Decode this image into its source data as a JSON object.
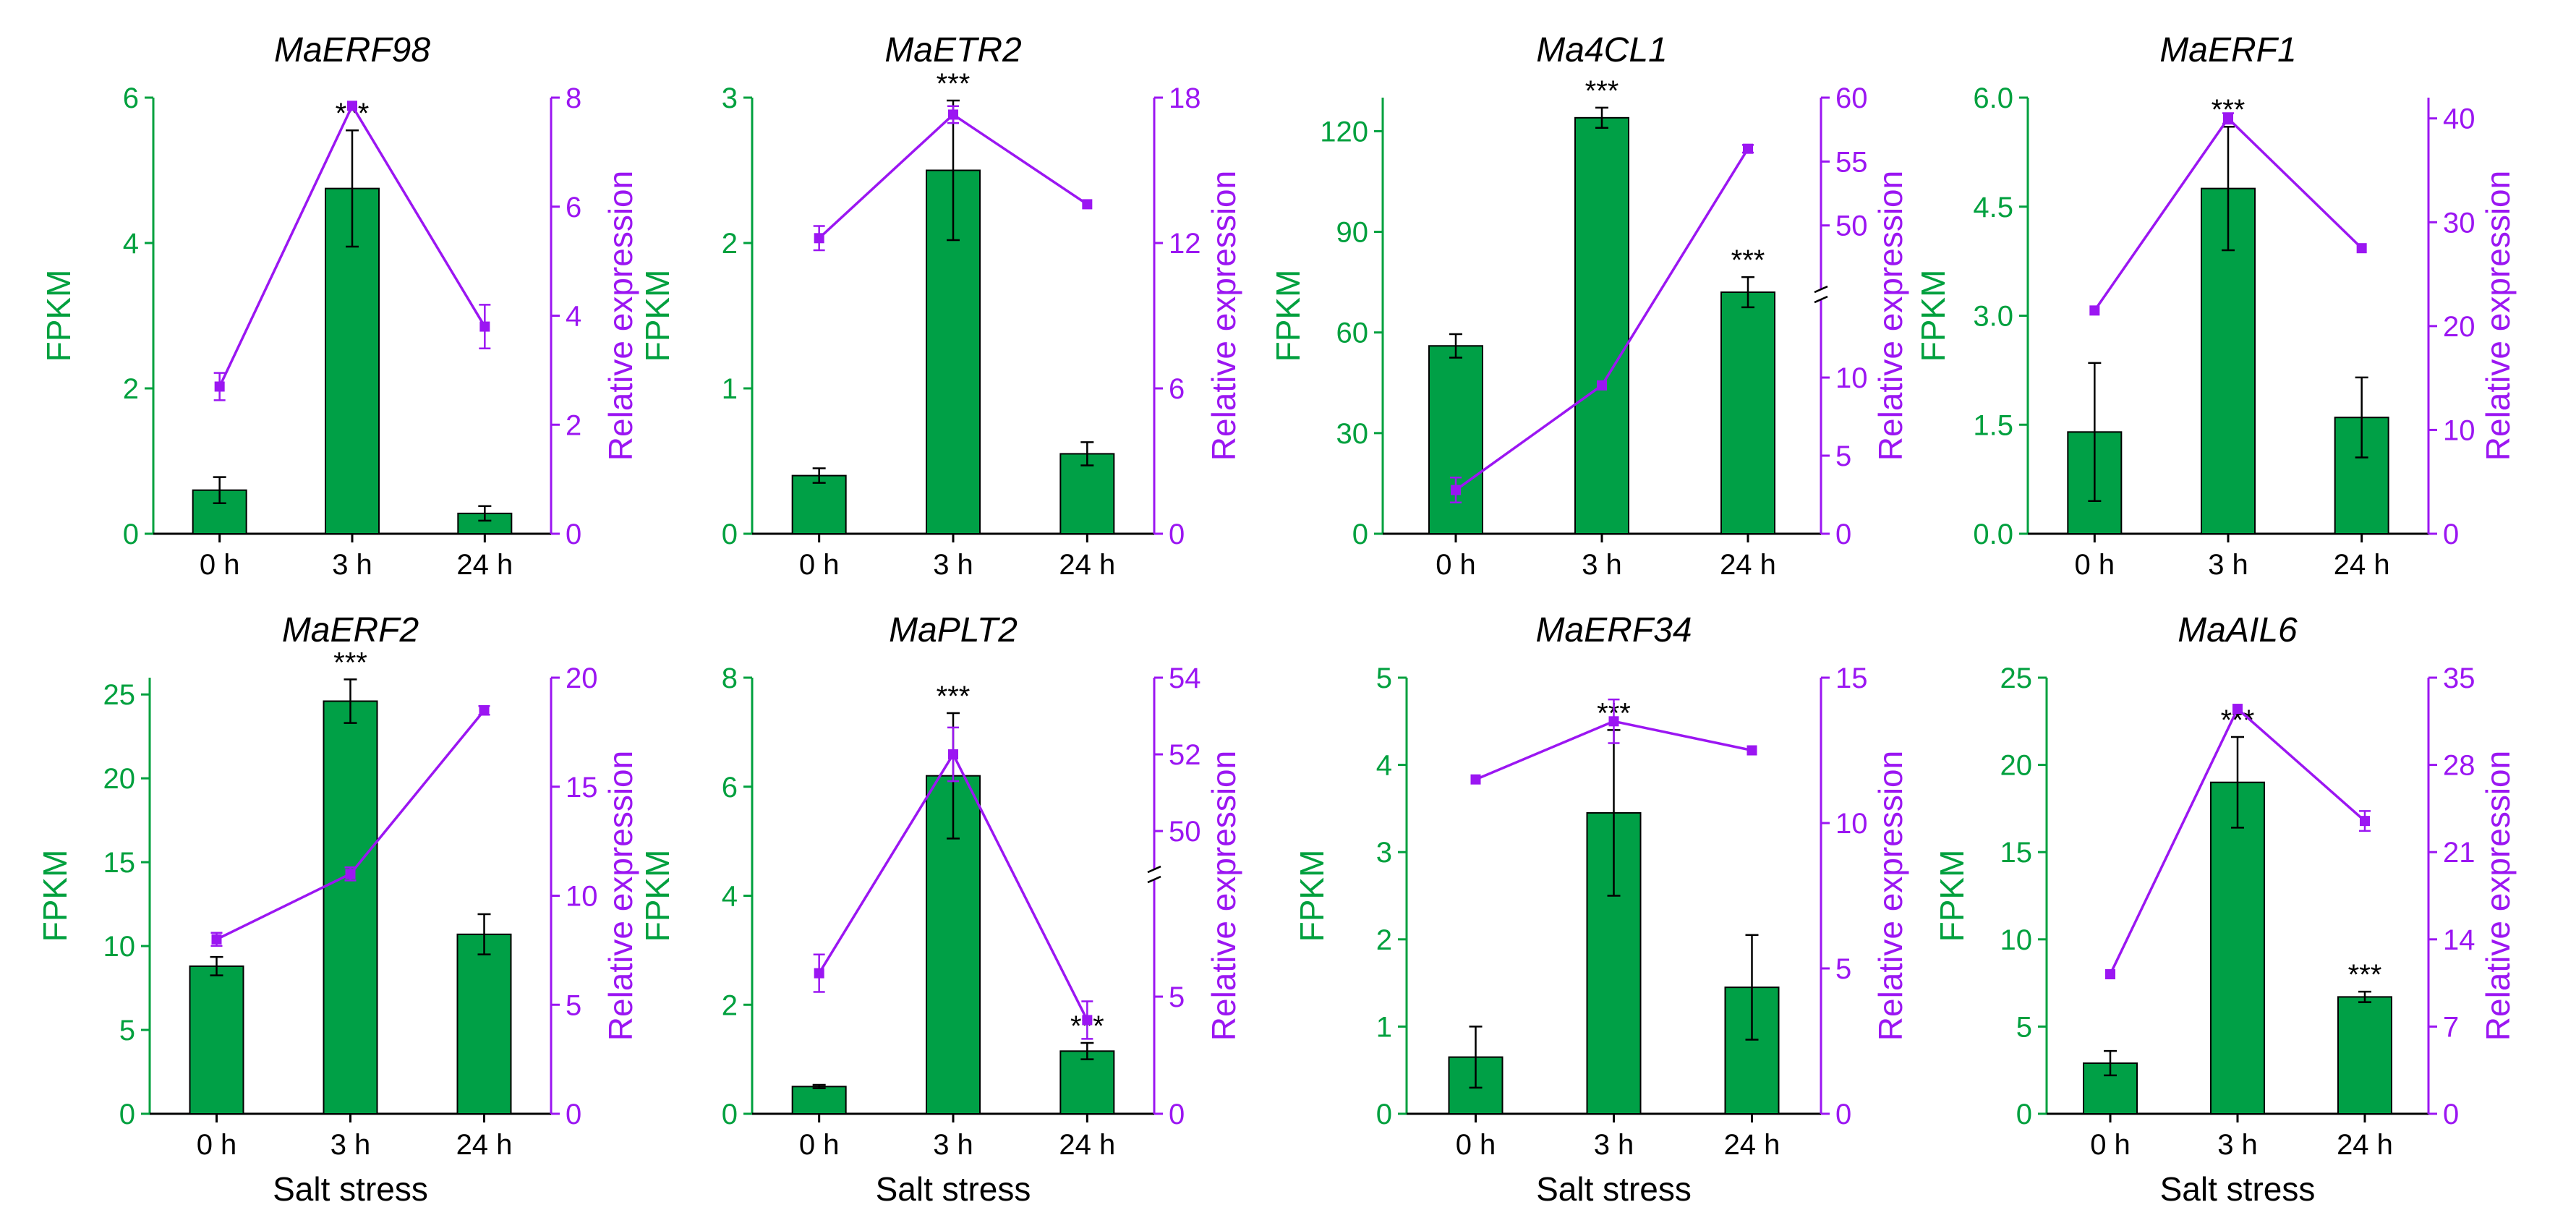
{
  "colors": {
    "fpkm": "#00A03E",
    "fpkm_bar": "#00A046",
    "relative": "#9B16F2",
    "text": "#000000"
  },
  "shared": {
    "x_label": "Salt stress",
    "left_axis_label": "FPKM",
    "right_axis_label": "Relative expression",
    "significance": "***"
  },
  "chart_data": [
    {
      "type": "bar+line",
      "title": "MaERF98",
      "categories": [
        "0 h",
        "3 h",
        "24 h"
      ],
      "fpkm": {
        "values": [
          0.6,
          4.75,
          0.28
        ],
        "errors": [
          0.18,
          0.8,
          0.1
        ],
        "ylim": [
          0,
          6
        ],
        "ticks": [
          0,
          2,
          4,
          6
        ],
        "tick_labels": [
          "0",
          "2",
          "4",
          "6"
        ],
        "sig": [
          false,
          true,
          false
        ]
      },
      "relative": {
        "values": [
          2.7,
          7.85,
          3.8
        ],
        "errors": [
          0.25,
          0,
          0.4
        ],
        "ylim": [
          0,
          8
        ],
        "ticks": [
          0,
          2,
          4,
          6,
          8
        ],
        "tick_labels": [
          "0",
          "2",
          "4",
          "6",
          "8"
        ]
      },
      "xlabel": "",
      "ylabel_left": "FPKM",
      "ylabel_right": "Relative expression"
    },
    {
      "type": "bar+line",
      "title": "MaETR2",
      "categories": [
        "0 h",
        "3 h",
        "24 h"
      ],
      "fpkm": {
        "values": [
          0.4,
          2.5,
          0.55
        ],
        "errors": [
          0.05,
          0.48,
          0.08
        ],
        "ylim": [
          0,
          3
        ],
        "ticks": [
          0,
          1,
          2,
          3
        ],
        "tick_labels": [
          "0",
          "1",
          "2",
          "3"
        ],
        "sig": [
          false,
          true,
          false
        ]
      },
      "relative": {
        "values": [
          12.2,
          17.3,
          13.6
        ],
        "errors": [
          0.5,
          0.35,
          0
        ],
        "ylim": [
          0,
          18
        ],
        "ticks": [
          0,
          6,
          12,
          18
        ],
        "tick_labels": [
          "0",
          "6",
          "12",
          "18"
        ]
      },
      "xlabel": "",
      "ylabel_left": "FPKM",
      "ylabel_right": "Relative expression"
    },
    {
      "type": "bar+line",
      "title": "Ma4CL1",
      "categories": [
        "0 h",
        "3 h",
        "24 h"
      ],
      "fpkm": {
        "values": [
          56,
          124,
          72
        ],
        "errors": [
          3.5,
          3,
          4.5
        ],
        "ylim": [
          0,
          130
        ],
        "ticks": [
          0,
          30,
          60,
          90,
          120
        ],
        "tick_labels": [
          "0",
          "30",
          "60",
          "90",
          "120"
        ],
        "sig": [
          false,
          true,
          true
        ]
      },
      "relative": {
        "values": [
          2.8,
          9.5,
          56.0
        ],
        "errors": [
          0.8,
          0,
          0.3
        ],
        "ylim": [
          0,
          60
        ],
        "ticks": [
          0,
          5,
          10,
          50,
          55,
          60
        ],
        "tick_labels": [
          "0",
          "5",
          "10",
          "50",
          "55",
          "60"
        ],
        "axis_break": [
          15,
          45
        ]
      },
      "xlabel": "",
      "ylabel_left": "FPKM",
      "ylabel_right": "Relative expression"
    },
    {
      "type": "bar+line",
      "title": "MaERF1",
      "categories": [
        "0 h",
        "3 h",
        "24 h"
      ],
      "fpkm": {
        "values": [
          1.4,
          4.75,
          1.6
        ],
        "errors": [
          0.95,
          0.85,
          0.55
        ],
        "ylim": [
          0,
          6
        ],
        "ticks": [
          0,
          1.5,
          3,
          4.5,
          6
        ],
        "tick_labels": [
          "0.0",
          "1.5",
          "3.0",
          "4.5",
          "6.0"
        ],
        "sig": [
          false,
          true,
          false
        ]
      },
      "relative": {
        "values": [
          21.5,
          40.0,
          27.5
        ],
        "errors": [
          0,
          0.5,
          0
        ],
        "ylim": [
          0,
          42
        ],
        "ticks": [
          0,
          10,
          20,
          30,
          40
        ],
        "tick_labels": [
          "0",
          "10",
          "20",
          "30",
          "40"
        ]
      },
      "xlabel": "",
      "ylabel_left": "FPKM",
      "ylabel_right": "Relative expression"
    },
    {
      "type": "bar+line",
      "title": "MaERF2",
      "categories": [
        "0 h",
        "3 h",
        "24 h"
      ],
      "fpkm": {
        "values": [
          8.8,
          24.6,
          10.7
        ],
        "errors": [
          0.55,
          1.3,
          1.2
        ],
        "ylim": [
          0,
          26
        ],
        "ticks": [
          0,
          5,
          10,
          15,
          20,
          25
        ],
        "tick_labels": [
          "0",
          "5",
          "10",
          "15",
          "20",
          "25"
        ],
        "sig": [
          false,
          true,
          false
        ]
      },
      "relative": {
        "values": [
          8.0,
          11.0,
          18.5
        ],
        "errors": [
          0.3,
          0.3,
          0.2
        ],
        "ylim": [
          0,
          20
        ],
        "ticks": [
          0,
          5,
          10,
          15,
          20
        ],
        "tick_labels": [
          "0",
          "5",
          "10",
          "15",
          "20"
        ]
      },
      "xlabel": "Salt stress",
      "ylabel_left": "FPKM",
      "ylabel_right": "Relative expression"
    },
    {
      "type": "bar+line",
      "title": "MaPLT2",
      "categories": [
        "0 h",
        "3 h",
        "24 h"
      ],
      "fpkm": {
        "values": [
          0.5,
          6.2,
          1.15
        ],
        "errors": [
          0.03,
          1.15,
          0.15
        ],
        "ylim": [
          0,
          8
        ],
        "ticks": [
          0,
          2,
          4,
          6,
          8
        ],
        "tick_labels": [
          "0",
          "2",
          "4",
          "6",
          "8"
        ],
        "sig": [
          false,
          true,
          true
        ]
      },
      "relative": {
        "values": [
          6.0,
          52.0,
          4.0
        ],
        "errors": [
          0.8,
          0.7,
          0.8
        ],
        "ylim": [
          0,
          54
        ],
        "ticks": [
          0,
          5,
          50,
          52,
          54
        ],
        "tick_labels": [
          "0",
          "5",
          "50",
          "52",
          "54"
        ],
        "axis_break": [
          10,
          49
        ]
      },
      "xlabel": "Salt stress",
      "ylabel_left": "FPKM",
      "ylabel_right": "Relative expression"
    },
    {
      "type": "bar+line",
      "title": "MaERF34",
      "categories": [
        "0 h",
        "3 h",
        "24 h"
      ],
      "fpkm": {
        "values": [
          0.65,
          3.45,
          1.45
        ],
        "errors": [
          0.35,
          0.95,
          0.6
        ],
        "ylim": [
          0,
          5
        ],
        "ticks": [
          0,
          1,
          2,
          3,
          4,
          5
        ],
        "tick_labels": [
          "0",
          "1",
          "2",
          "3",
          "4",
          "5"
        ],
        "sig": [
          false,
          true,
          false
        ]
      },
      "relative": {
        "values": [
          11.5,
          13.5,
          12.5
        ],
        "errors": [
          0,
          0.75,
          0
        ],
        "ylim": [
          0,
          15
        ],
        "ticks": [
          0,
          5,
          10,
          15
        ],
        "tick_labels": [
          "0",
          "5",
          "10",
          "15"
        ]
      },
      "xlabel": "Salt stress",
      "ylabel_left": "FPKM",
      "ylabel_right": "Relative expression"
    },
    {
      "type": "bar+line",
      "title": "MaAIL6",
      "categories": [
        "0 h",
        "3 h",
        "24 h"
      ],
      "fpkm": {
        "values": [
          2.9,
          19.0,
          6.7
        ],
        "errors": [
          0.7,
          2.6,
          0.3
        ],
        "ylim": [
          0,
          25
        ],
        "ticks": [
          0,
          5,
          10,
          15,
          20,
          25
        ],
        "tick_labels": [
          "0",
          "5",
          "10",
          "15",
          "20",
          "25"
        ],
        "sig": [
          false,
          true,
          true
        ]
      },
      "relative": {
        "values": [
          11.2,
          32.5,
          23.5
        ],
        "errors": [
          0,
          0,
          0.8
        ],
        "ylim": [
          0,
          35
        ],
        "ticks": [
          0,
          7,
          14,
          21,
          28,
          35
        ],
        "tick_labels": [
          "0",
          "7",
          "14",
          "21",
          "28",
          "35"
        ]
      },
      "xlabel": "Salt stress",
      "ylabel_left": "FPKM",
      "ylabel_right": "Relative expression"
    }
  ]
}
